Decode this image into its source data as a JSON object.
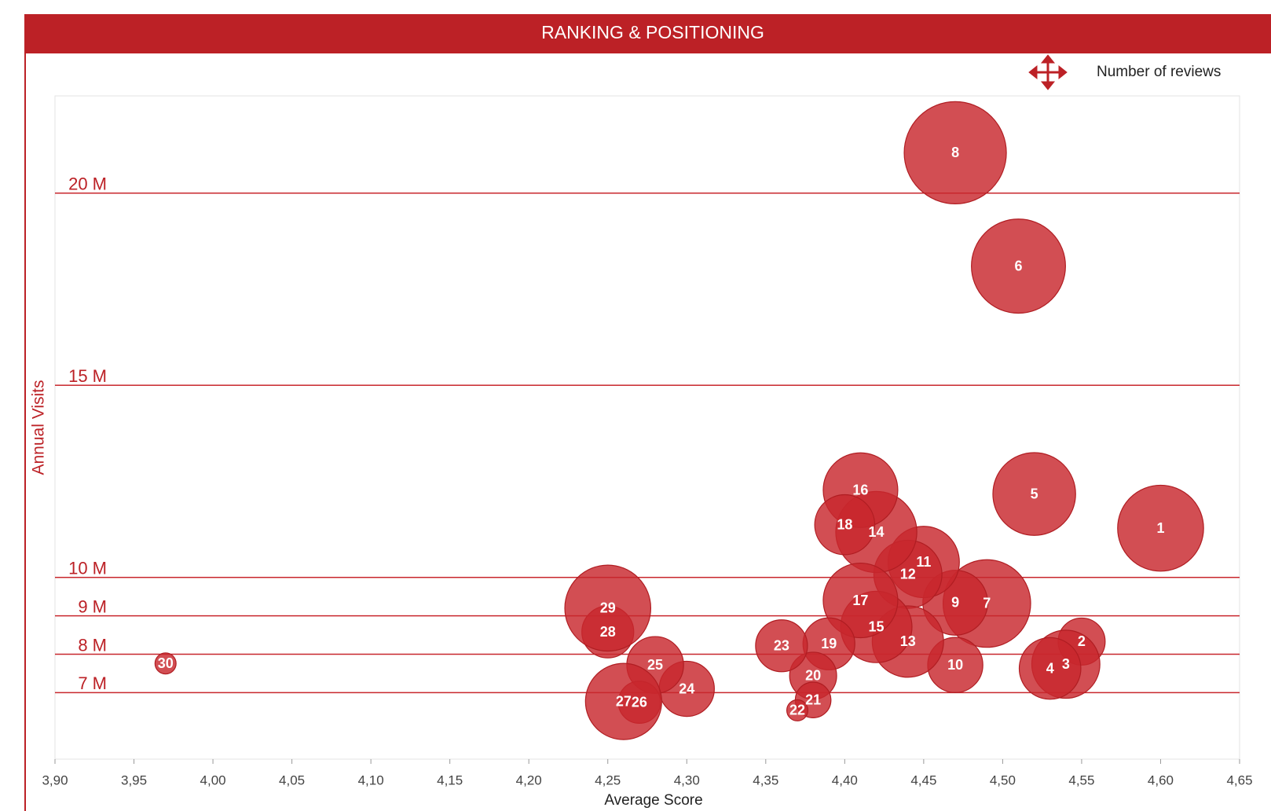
{
  "chart_data": {
    "type": "bubble",
    "title": "RANKING & POSITIONING",
    "x_label": "Average Score",
    "y_label": "Annual Visits",
    "size_label": "Number of reviews",
    "color": "#c8272d",
    "labels": [
      "1",
      "2",
      "3",
      "4",
      "5",
      "6",
      "7",
      "8",
      "9",
      "10",
      "11",
      "12",
      "13",
      "14",
      "15",
      "16",
      "17",
      "18",
      "19",
      "20",
      "21",
      "22",
      "23",
      "24",
      "25",
      "26",
      "27",
      "28",
      "29",
      "30"
    ],
    "x": [
      4.6,
      4.55,
      4.54,
      4.53,
      4.52,
      4.51,
      4.49,
      4.47,
      4.47,
      4.47,
      4.45,
      4.44,
      4.44,
      4.42,
      4.42,
      4.41,
      4.41,
      4.4,
      4.39,
      4.38,
      4.38,
      4.37,
      4.36,
      4.3,
      4.28,
      4.27,
      4.26,
      4.25,
      4.25,
      3.97
    ],
    "y": [
      11.28,
      8.33,
      7.74,
      7.63,
      12.17,
      18.1,
      9.32,
      21.05,
      9.34,
      7.72,
      10.4,
      10.08,
      8.33,
      11.18,
      8.71,
      12.27,
      9.4,
      11.37,
      8.27,
      7.44,
      6.81,
      6.54,
      8.22,
      7.1,
      7.72,
      6.75,
      6.77,
      8.58,
      9.2,
      7.76
    ],
    "sizes": [
      2809,
      841,
      1764,
      1444,
      2601,
      3364,
      2916,
      3969,
      1600,
      1156,
      1936,
      1764,
      1936,
      2500,
      1936,
      2116,
      2116,
      1369,
      1024,
      841,
      484,
      169,
      1024,
      1156,
      1225,
      676,
      2209,
      1024,
      2809,
      169
    ],
    "xlim": [
      3.9,
      4.65
    ],
    "xticks": [
      {
        "value": 3.9,
        "label": "3,90"
      },
      {
        "value": 3.95,
        "label": "3,95"
      },
      {
        "value": 4.0,
        "label": "4,00"
      },
      {
        "value": 4.05,
        "label": "4,05"
      },
      {
        "value": 4.1,
        "label": "4,10"
      },
      {
        "value": 4.15,
        "label": "4,15"
      },
      {
        "value": 4.2,
        "label": "4,20"
      },
      {
        "value": 4.25,
        "label": "4,25"
      },
      {
        "value": 4.3,
        "label": "4,30"
      },
      {
        "value": 4.35,
        "label": "4,35"
      },
      {
        "value": 4.4,
        "label": "4,40"
      },
      {
        "value": 4.45,
        "label": "4,45"
      },
      {
        "value": 4.5,
        "label": "4,50"
      },
      {
        "value": 4.55,
        "label": "4,55"
      },
      {
        "value": 4.6,
        "label": "4,60"
      },
      {
        "value": 4.65,
        "label": "4,65"
      }
    ],
    "ylim": [
      5.27,
      22.53
    ],
    "yticks": [
      {
        "value": 7,
        "label": "7 M"
      },
      {
        "value": 8,
        "label": "8 M"
      },
      {
        "value": 9,
        "label": "9 M"
      },
      {
        "value": 10,
        "label": "10 M"
      },
      {
        "value": 15,
        "label": "15 M"
      },
      {
        "value": 20,
        "label": "20 M"
      }
    ],
    "grid": true
  }
}
